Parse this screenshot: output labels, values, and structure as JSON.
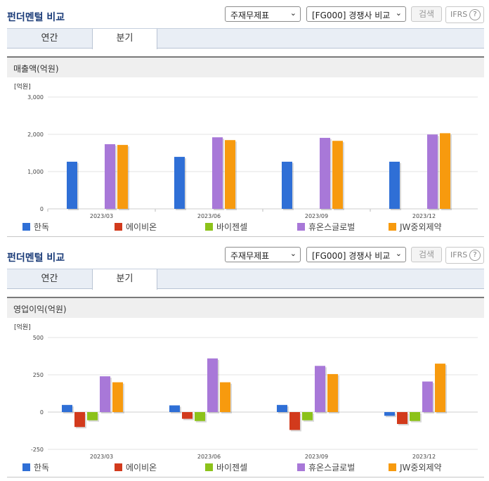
{
  "panels": [
    {
      "title": "펀더멘털 비교",
      "select1": "주재무제표",
      "select2": "[FG000] 경쟁사 비교",
      "search_label": "검색",
      "ifrs_label": "IFRS",
      "help_glyph": "?",
      "tabs": [
        "연간",
        "분기"
      ],
      "active_tab": 1,
      "metric_label": "매출액(억원)",
      "unit_label": "[억원]"
    },
    {
      "title": "펀더멘털 비교",
      "select1": "주재무제표",
      "select2": "[FG000] 경쟁사 비교",
      "search_label": "검색",
      "ifrs_label": "IFRS",
      "help_glyph": "?",
      "tabs": [
        "연간",
        "분기"
      ],
      "active_tab": 1,
      "metric_label": "영업이익(억원)",
      "unit_label": "[억원]"
    }
  ],
  "chart_data": [
    {
      "type": "bar",
      "title": "매출액(억원)",
      "ylabel": "[억원]",
      "categories": [
        "2023/03",
        "2023/06",
        "2023/09",
        "2023/12"
      ],
      "ylim": [
        0,
        3000
      ],
      "yticks": [
        0,
        1000,
        2000,
        3000
      ],
      "ytick_labels": [
        "0",
        "1,000",
        "2,000",
        "3,000"
      ],
      "grid": true,
      "legend_position": "bottom",
      "series": [
        {
          "name": "한독",
          "color": "#2f6fd6",
          "values": [
            1265,
            1395,
            1265,
            1265
          ]
        },
        {
          "name": "에이비온",
          "color": "#d23a1c",
          "values": [
            null,
            null,
            null,
            null
          ]
        },
        {
          "name": "바이젠셀",
          "color": "#8cc21a",
          "values": [
            null,
            null,
            null,
            null
          ]
        },
        {
          "name": "휴온스글로벌",
          "color": "#a878d8",
          "values": [
            1735,
            1920,
            1905,
            1995
          ]
        },
        {
          "name": "JW중외제약",
          "color": "#f79a0e",
          "values": [
            1715,
            1845,
            1825,
            2030
          ]
        }
      ]
    },
    {
      "type": "bar",
      "title": "영업이익(억원)",
      "ylabel": "[억원]",
      "categories": [
        "2023/03",
        "2023/06",
        "2023/09",
        "2023/12"
      ],
      "ylim": [
        -250,
        500
      ],
      "yticks": [
        -250,
        0,
        250,
        500
      ],
      "ytick_labels": [
        "-250",
        "0",
        "250",
        "500"
      ],
      "grid": true,
      "legend_position": "bottom",
      "series": [
        {
          "name": "한독",
          "color": "#2f6fd6",
          "values": [
            48,
            45,
            48,
            -25
          ]
        },
        {
          "name": "에이비온",
          "color": "#d23a1c",
          "values": [
            -100,
            -45,
            -120,
            -80
          ]
        },
        {
          "name": "바이젠셀",
          "color": "#8cc21a",
          "values": [
            -55,
            -60,
            -55,
            -60
          ]
        },
        {
          "name": "휴온스글로벌",
          "color": "#a878d8",
          "values": [
            240,
            360,
            310,
            205
          ]
        },
        {
          "name": "JW중외제약",
          "color": "#f79a0e",
          "values": [
            200,
            200,
            255,
            325
          ]
        }
      ]
    }
  ]
}
